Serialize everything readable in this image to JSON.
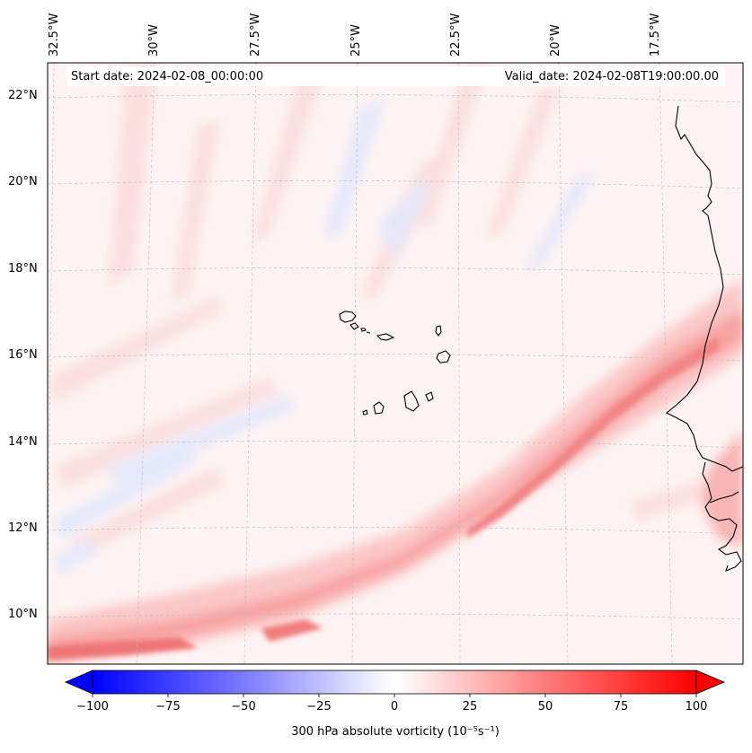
{
  "map": {
    "header": {
      "start_date": "Start date: 2024-02-08_00:00:00",
      "valid_date": "Valid_date: 2024-02-08T19:00:00.00"
    },
    "lon_ticks": [
      "32.5°W",
      "30°W",
      "27.5°W",
      "25°W",
      "22.5°W",
      "20°W",
      "17.5°W"
    ],
    "lat_ticks": [
      "22°N",
      "20°N",
      "18°N",
      "16°N",
      "14°N",
      "12°N",
      "10°N"
    ],
    "extent": {
      "lon_min": -33.0,
      "lon_max": -16.0,
      "lat_min": 9.0,
      "lat_max": 22.8
    },
    "colorbar": {
      "label": "300 hPa absolute vorticity (10⁻⁵s⁻¹)",
      "vmin": -100,
      "vmax": 100,
      "ticks": [
        "−100",
        "−75",
        "−50",
        "−25",
        "0",
        "25",
        "50",
        "75",
        "100"
      ],
      "colors": {
        "negative": "#0000ff",
        "neutral": "#ffffff",
        "positive": "#ff0000"
      }
    },
    "features": [
      "coastline-africa",
      "cape-verde-islands"
    ]
  }
}
